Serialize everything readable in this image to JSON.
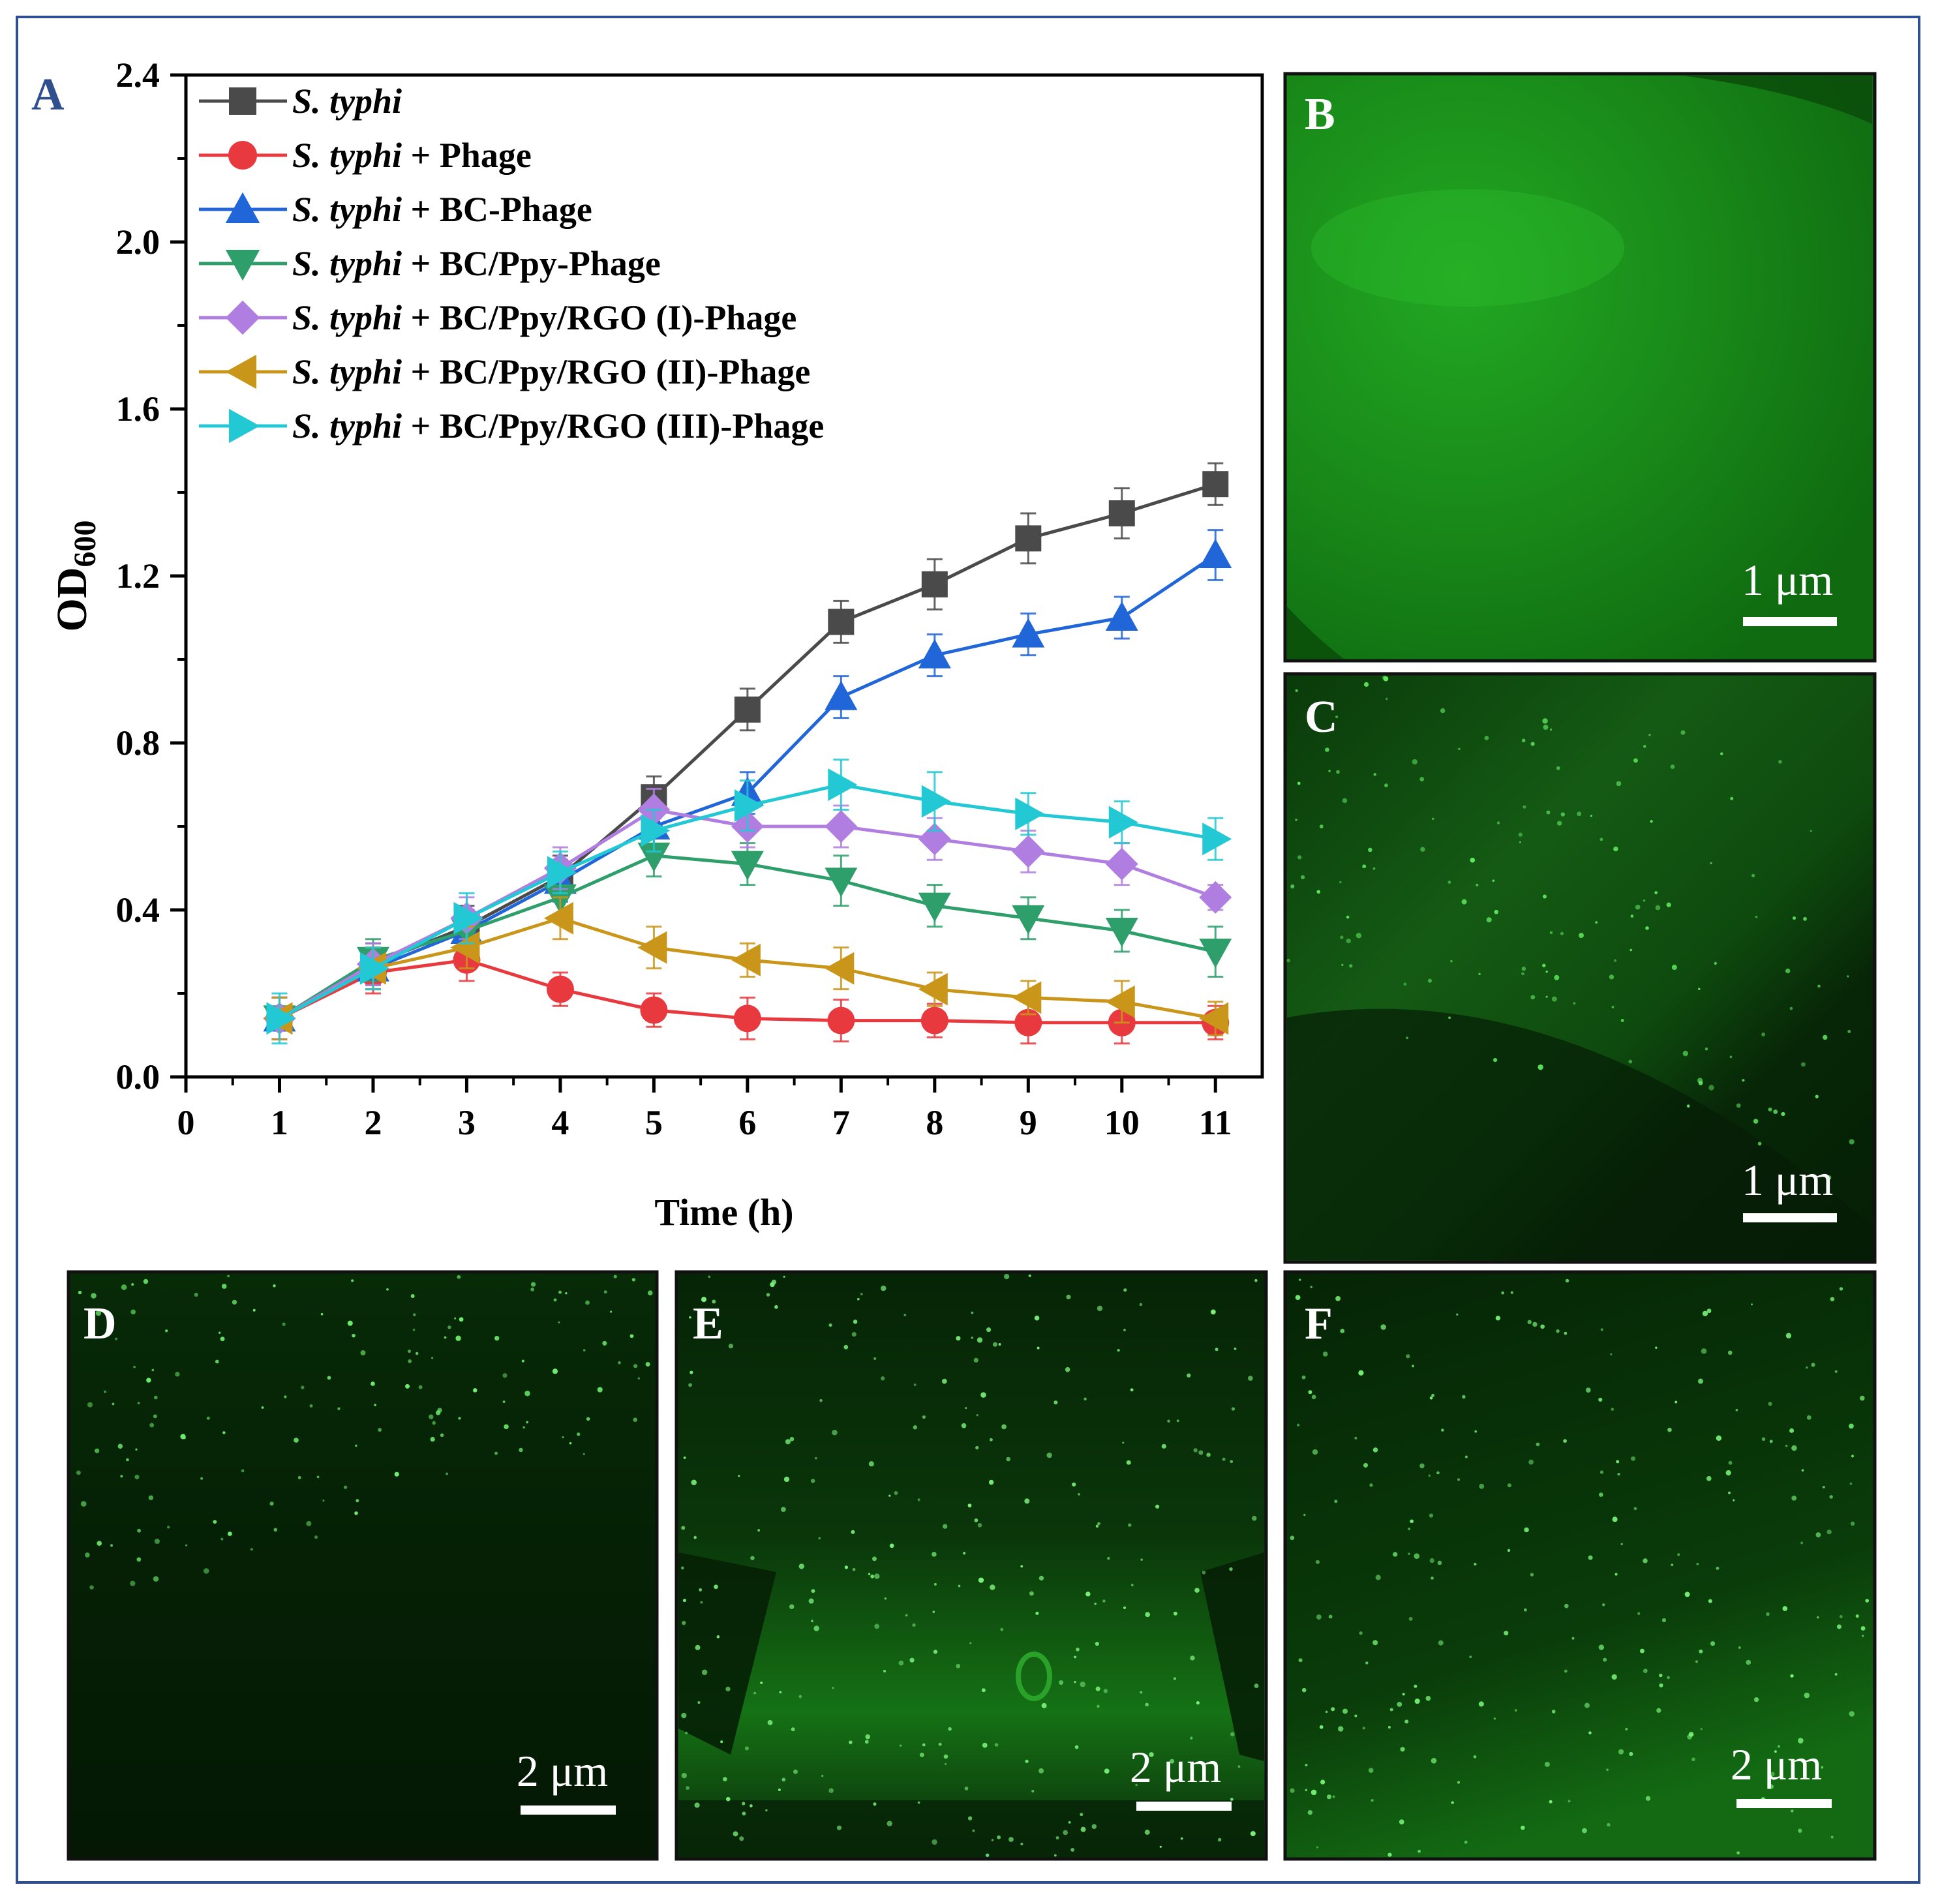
{
  "chart_data": {
    "type": "line",
    "panel_label": "A",
    "title": "",
    "xlabel": "Time (h)",
    "ylabel": "OD",
    "ylabel_sub": "600",
    "xlim": [
      0,
      11.5
    ],
    "ylim": [
      0,
      2.4
    ],
    "x_ticks": [
      0,
      1,
      2,
      3,
      4,
      5,
      6,
      7,
      8,
      9,
      10,
      11
    ],
    "y_ticks": [
      0.0,
      0.4,
      0.8,
      1.2,
      1.6,
      2.0,
      2.4
    ],
    "y_tick_labels": [
      "0.0",
      "0.4",
      "0.8",
      "1.2",
      "1.6",
      "2.0",
      "2.4"
    ],
    "grid": false,
    "legend_position": "top-left",
    "x": [
      1,
      2,
      3,
      4,
      5,
      6,
      7,
      8,
      9,
      10,
      11
    ],
    "series": [
      {
        "name_italic": "S. typhi",
        "name_rest": "",
        "color": "#4a4a4a",
        "marker": "square",
        "values": [
          0.14,
          0.27,
          0.36,
          0.48,
          0.67,
          0.88,
          1.09,
          1.18,
          1.29,
          1.35,
          1.42
        ],
        "errors": [
          0.05,
          0.05,
          0.05,
          0.05,
          0.05,
          0.05,
          0.05,
          0.06,
          0.06,
          0.06,
          0.05
        ]
      },
      {
        "name_italic": "S. typhi",
        "name_rest": " + Phage",
        "color": "#e8393f",
        "marker": "circle",
        "values": [
          0.14,
          0.25,
          0.28,
          0.21,
          0.16,
          0.14,
          0.135,
          0.135,
          0.13,
          0.13,
          0.13
        ],
        "errors": [
          0.05,
          0.05,
          0.05,
          0.04,
          0.04,
          0.05,
          0.05,
          0.04,
          0.05,
          0.05,
          0.04
        ]
      },
      {
        "name_italic": "S. typhi",
        "name_rest": " + BC-Phage",
        "color": "#2166d8",
        "marker": "triangle-up",
        "values": [
          0.14,
          0.26,
          0.35,
          0.47,
          0.6,
          0.68,
          0.91,
          1.01,
          1.06,
          1.1,
          1.25
        ],
        "errors": [
          0.05,
          0.05,
          0.05,
          0.05,
          0.05,
          0.05,
          0.05,
          0.05,
          0.05,
          0.05,
          0.06
        ]
      },
      {
        "name_italic": "S. typhi",
        "name_rest": " + BC/Ppy-Phage",
        "color": "#2e9e6a",
        "marker": "triangle-down",
        "values": [
          0.14,
          0.28,
          0.35,
          0.43,
          0.53,
          0.51,
          0.47,
          0.41,
          0.38,
          0.35,
          0.3
        ],
        "errors": [
          0.05,
          0.05,
          0.05,
          0.05,
          0.05,
          0.05,
          0.06,
          0.05,
          0.05,
          0.05,
          0.06
        ]
      },
      {
        "name_italic": "S. typhi",
        "name_rest": " + BC/Ppy/RGO (I)-Phage",
        "color": "#b07ee0",
        "marker": "diamond",
        "values": [
          0.14,
          0.27,
          0.38,
          0.5,
          0.64,
          0.6,
          0.6,
          0.57,
          0.54,
          0.51,
          0.43
        ],
        "errors": [
          0.05,
          0.05,
          0.05,
          0.05,
          0.05,
          0.05,
          0.05,
          0.05,
          0.05,
          0.05,
          0.03
        ]
      },
      {
        "name_italic": "S. typhi",
        "name_rest": " + BC/Ppy/RGO (II)-Phage",
        "color": "#c9961a",
        "marker": "triangle-left",
        "values": [
          0.14,
          0.26,
          0.31,
          0.38,
          0.31,
          0.28,
          0.26,
          0.21,
          0.19,
          0.18,
          0.14
        ],
        "errors": [
          0.05,
          0.05,
          0.05,
          0.05,
          0.05,
          0.04,
          0.05,
          0.04,
          0.04,
          0.05,
          0.04
        ]
      },
      {
        "name_italic": "S. typhi",
        "name_rest": " + BC/Ppy/RGO (III)-Phage",
        "color": "#22c8d4",
        "marker": "triangle-right",
        "values": [
          0.14,
          0.26,
          0.38,
          0.49,
          0.59,
          0.65,
          0.7,
          0.66,
          0.63,
          0.61,
          0.57
        ],
        "errors": [
          0.06,
          0.05,
          0.06,
          0.05,
          0.05,
          0.06,
          0.06,
          0.07,
          0.05,
          0.05,
          0.05
        ]
      }
    ]
  },
  "micrographs": [
    {
      "label": "B",
      "scale": "1 μm"
    },
    {
      "label": "C",
      "scale": "1 μm"
    },
    {
      "label": "D",
      "scale": "2 μm"
    },
    {
      "label": "E",
      "scale": "2 μm"
    },
    {
      "label": "F",
      "scale": "2 μm"
    }
  ]
}
